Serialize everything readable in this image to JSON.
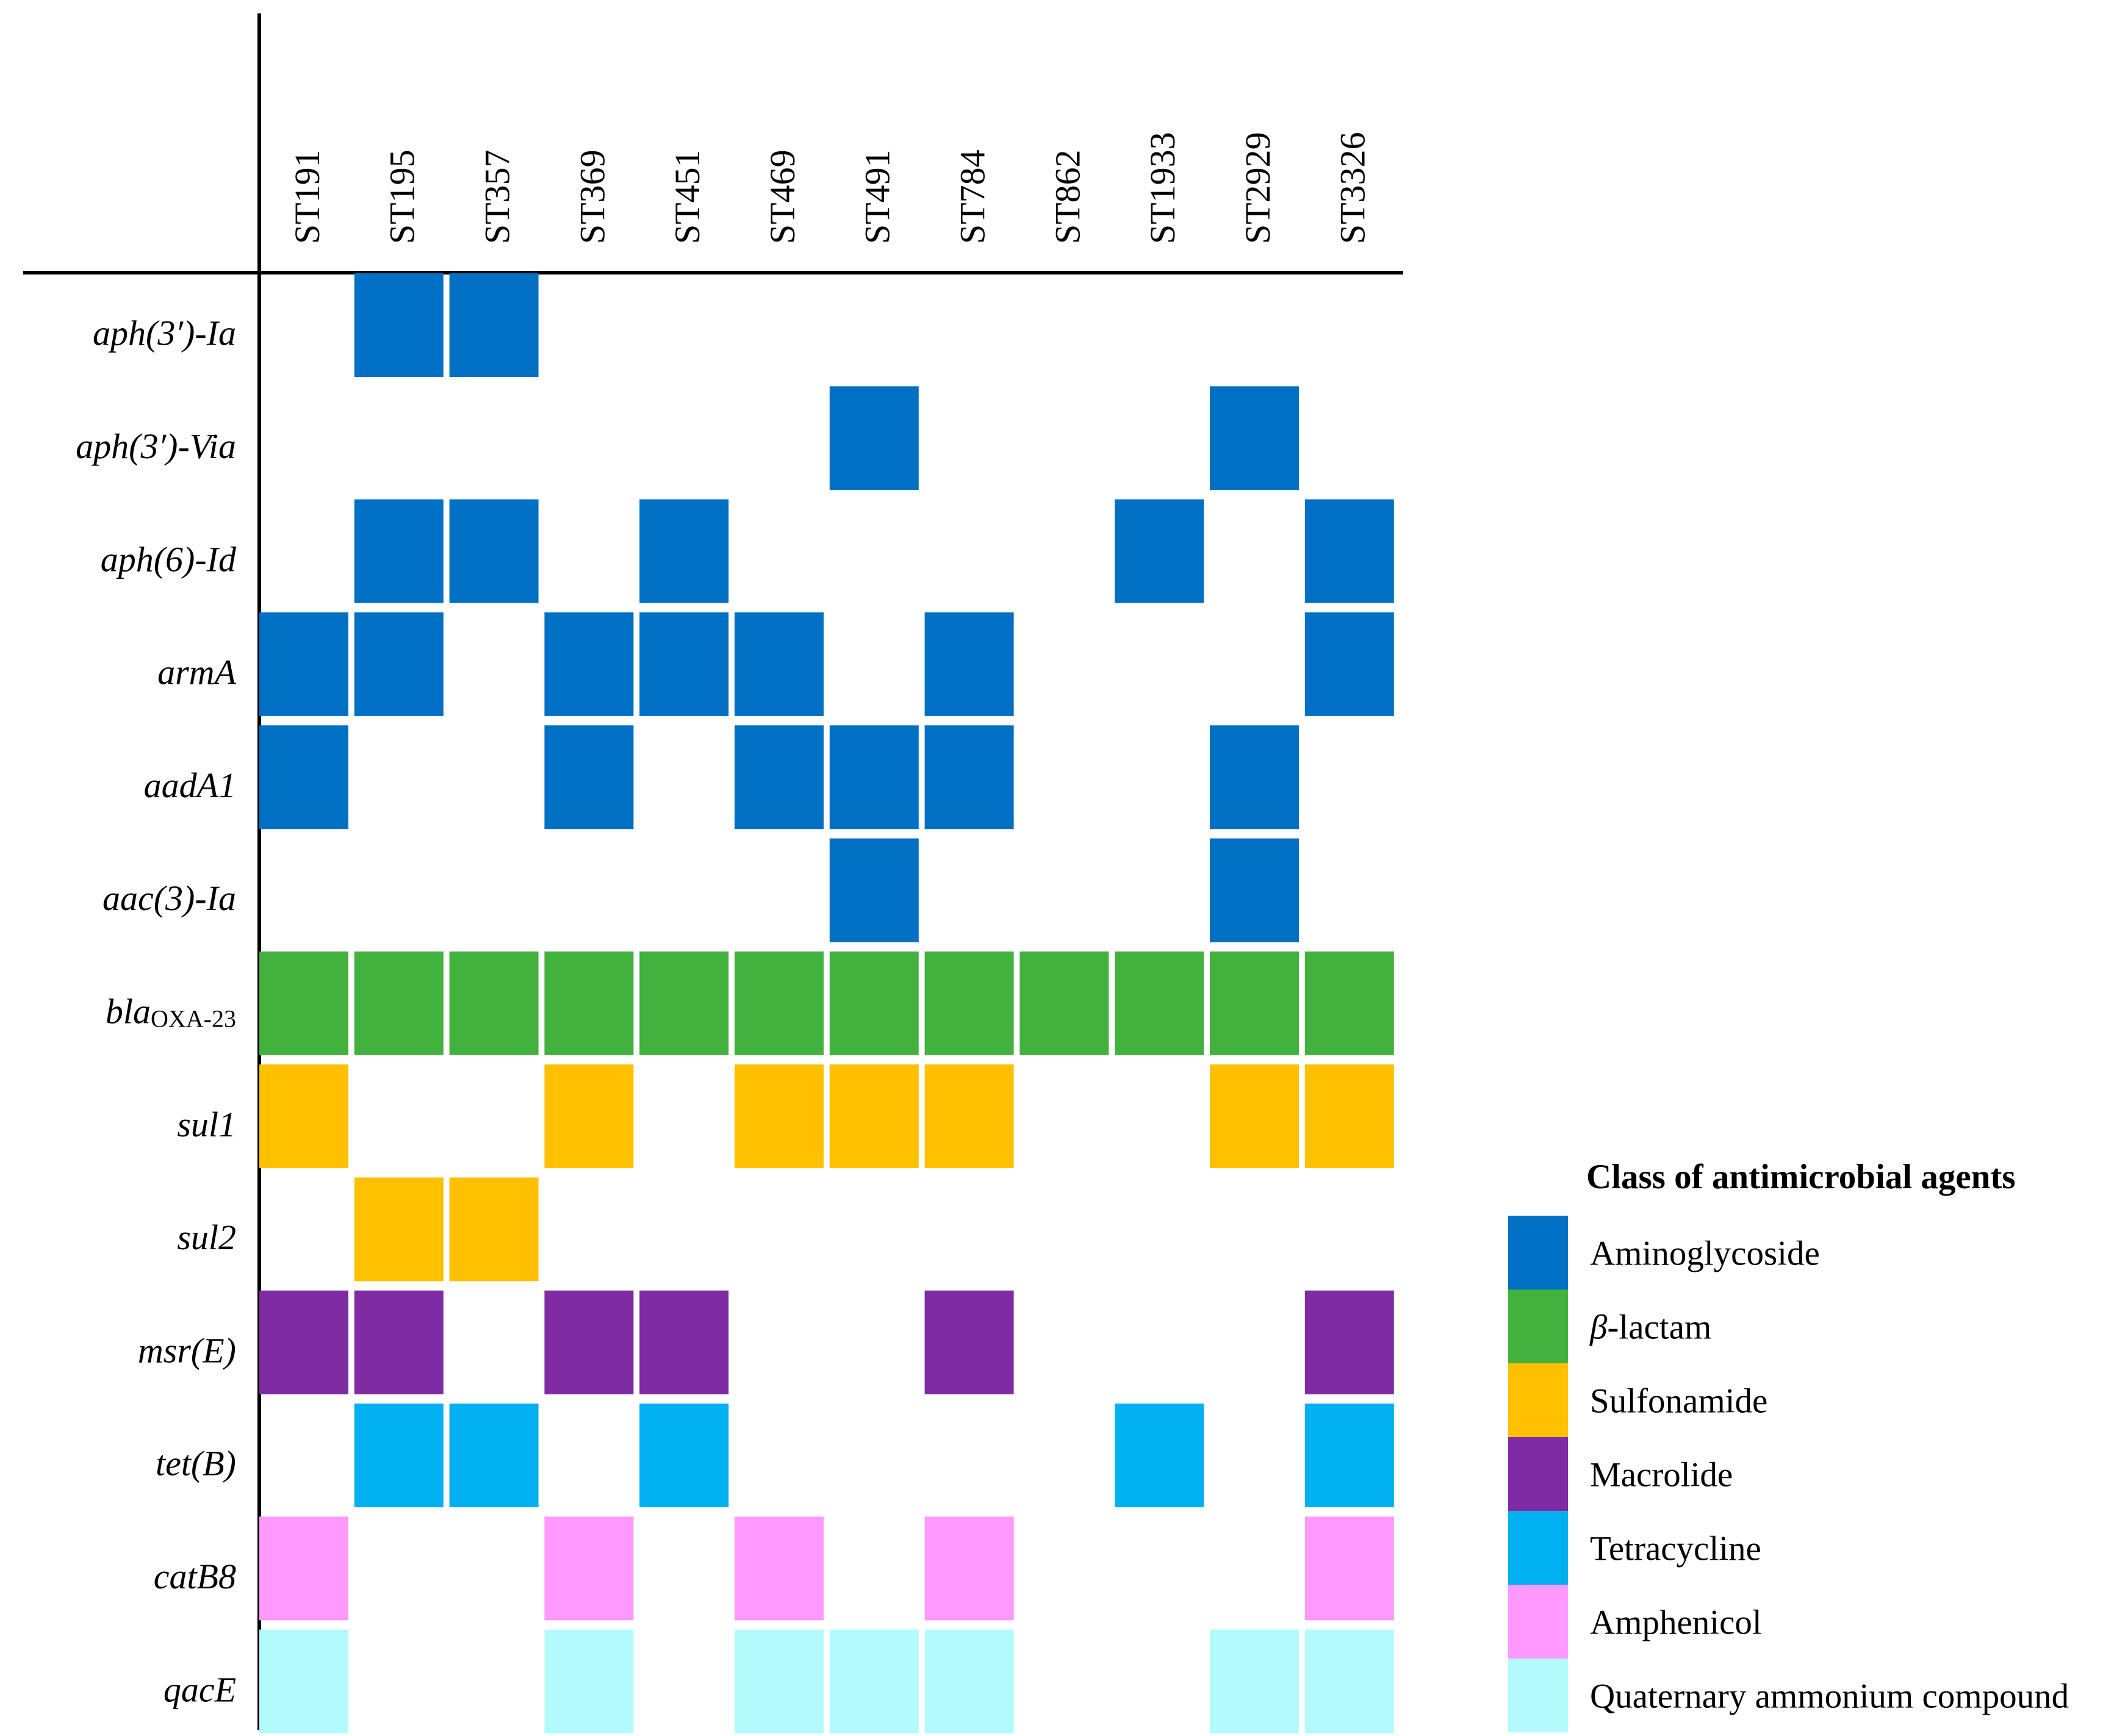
{
  "chart_data": {
    "type": "heatmap",
    "title": "",
    "columns": [
      "ST191",
      "ST195",
      "ST357",
      "ST369",
      "ST451",
      "ST469",
      "ST491",
      "ST784",
      "ST862",
      "ST1933",
      "ST2929",
      "ST3326"
    ],
    "rows": [
      {
        "gene": "aph(3′)-Ia",
        "class": "aminoglycoside",
        "present": [
          "ST195",
          "ST357"
        ]
      },
      {
        "gene": "aph(3′)-Via",
        "class": "aminoglycoside",
        "present": [
          "ST491",
          "ST2929"
        ]
      },
      {
        "gene": "aph(6)-Id",
        "class": "aminoglycoside",
        "present": [
          "ST195",
          "ST357",
          "ST451",
          "ST1933",
          "ST3326"
        ]
      },
      {
        "gene": "armA",
        "class": "aminoglycoside",
        "present": [
          "ST191",
          "ST195",
          "ST369",
          "ST451",
          "ST469",
          "ST784",
          "ST3326"
        ]
      },
      {
        "gene": "aadA1",
        "class": "aminoglycoside",
        "present": [
          "ST191",
          "ST369",
          "ST469",
          "ST491",
          "ST784",
          "ST2929"
        ]
      },
      {
        "gene": "aac(3)-Ia",
        "class": "aminoglycoside",
        "present": [
          "ST491",
          "ST2929"
        ]
      },
      {
        "gene": "bla",
        "gene_subscript": "OXA-23",
        "class": "beta_lactam",
        "present": [
          "ST191",
          "ST195",
          "ST357",
          "ST369",
          "ST451",
          "ST469",
          "ST491",
          "ST784",
          "ST862",
          "ST1933",
          "ST2929",
          "ST3326"
        ]
      },
      {
        "gene": "sul1",
        "class": "sulfonamide",
        "present": [
          "ST191",
          "ST369",
          "ST469",
          "ST491",
          "ST784",
          "ST2929",
          "ST3326"
        ]
      },
      {
        "gene": "sul2",
        "class": "sulfonamide",
        "present": [
          "ST195",
          "ST357"
        ]
      },
      {
        "gene": "msr(E)",
        "class": "macrolide",
        "present": [
          "ST191",
          "ST195",
          "ST369",
          "ST451",
          "ST784",
          "ST3326"
        ]
      },
      {
        "gene": "tet(B)",
        "class": "tetracycline",
        "present": [
          "ST195",
          "ST357",
          "ST451",
          "ST1933",
          "ST3326"
        ]
      },
      {
        "gene": "catB8",
        "class": "amphenicol",
        "present": [
          "ST191",
          "ST369",
          "ST469",
          "ST784",
          "ST3326"
        ]
      },
      {
        "gene": "qacE",
        "class": "qac",
        "present": [
          "ST191",
          "ST369",
          "ST469",
          "ST491",
          "ST784",
          "ST2929",
          "ST3326"
        ]
      }
    ],
    "legend": {
      "title": "Class of antimicrobial agents",
      "position": "bottom-right",
      "items": [
        {
          "key": "aminoglycoside",
          "label": "Aminoglycoside",
          "color": "#0070C5"
        },
        {
          "key": "beta_lactam",
          "label_prefix": "β",
          "label": "-lactam",
          "color": "#43B13E"
        },
        {
          "key": "sulfonamide",
          "label": "Sulfonamide",
          "color": "#FFC000"
        },
        {
          "key": "macrolide",
          "label": "Macrolide",
          "color": "#7F2BA3"
        },
        {
          "key": "tetracycline",
          "label": "Tetracycline",
          "color": "#00B0F0"
        },
        {
          "key": "amphenicol",
          "label": "Amphenicol",
          "color": "#FF99FF"
        },
        {
          "key": "qac",
          "label": "Quaternary ammonium compound",
          "color": "#B3FAFC"
        }
      ]
    }
  }
}
